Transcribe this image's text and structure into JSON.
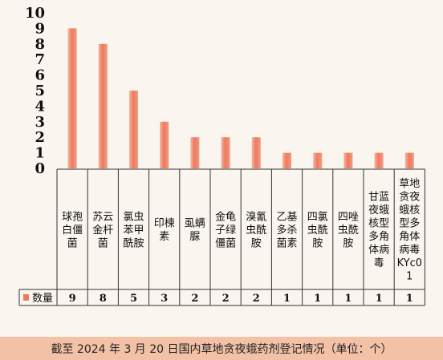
{
  "colors": {
    "bar": "#ee7a5e",
    "background": "#faf6ef",
    "footer_bg": "#f3c2a6"
  },
  "chart_data": {
    "type": "bar",
    "categories": [
      "球孢白僵菌",
      "苏云金杆菌",
      "氯虫苯甲酰胺",
      "印楝素",
      "虱螨脲",
      "金龟子绿僵菌",
      "溴氰虫酰胺",
      "乙基多杀菌素",
      "四氯虫酰胺",
      "四唑虫酰胺",
      "甘蓝夜蛾核型多角体病毒",
      "草地贪夜蛾核型多角体病毒KYc01"
    ],
    "series": [
      {
        "name": "数量",
        "values": [
          9,
          8,
          5,
          3,
          2,
          2,
          2,
          1,
          1,
          1,
          1,
          1
        ]
      }
    ],
    "ylim": [
      0,
      10
    ],
    "yticks": [
      0,
      1,
      2,
      3,
      4,
      5,
      6,
      7,
      8,
      9,
      10
    ],
    "legend": "bottom-left"
  },
  "footer": {
    "caption": "截至 2024 年 3 月 20 日国内草地贪夜蛾药剂登记情况（单位：个）"
  }
}
